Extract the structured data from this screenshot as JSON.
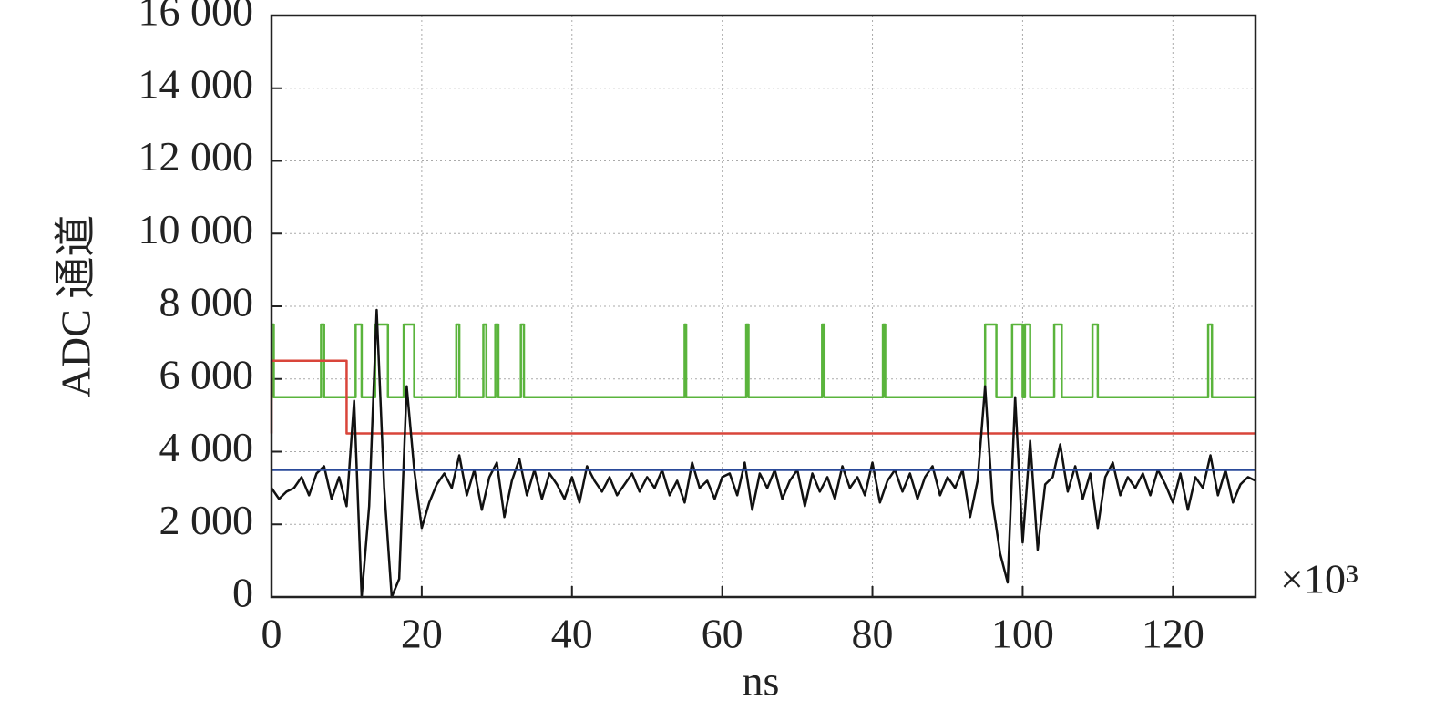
{
  "chart_data": {
    "type": "line",
    "x_label": "ns",
    "y_label": "ADC 通道",
    "x_multiplier": "×10³",
    "xlim": [
      0,
      131
    ],
    "ylim": [
      0,
      16000
    ],
    "xticks": [
      0,
      20,
      40,
      60,
      80,
      100,
      120
    ],
    "yticks": [
      0,
      {
        "value": 2000,
        "label": "2 000"
      },
      {
        "value": 4000,
        "label": "4 000"
      },
      {
        "value": 6000,
        "label": "6 000"
      },
      {
        "value": 8000,
        "label": "8 000"
      },
      {
        "value": 10000,
        "label": "10 000"
      },
      {
        "value": 12000,
        "label": "12 000"
      },
      {
        "value": 14000,
        "label": "14 000"
      },
      {
        "value": 16000,
        "label": "16 000"
      }
    ],
    "grid": true,
    "series": [
      {
        "color": "#5ab43c",
        "x": [
          0,
          0.3,
          0.3,
          6.6,
          6.6,
          7,
          7,
          11.2,
          11.2,
          12,
          12,
          13.8,
          13.8,
          15.5,
          15.5,
          17.6,
          17.6,
          19,
          19,
          24.6,
          24.6,
          25,
          25,
          28.2,
          28.2,
          28.6,
          28.6,
          29.8,
          29.8,
          30.2,
          30.2,
          33.2,
          33.2,
          33.6,
          33.6,
          55,
          55,
          55.2,
          55.2,
          63.2,
          63.2,
          63.5,
          63.5,
          73.3,
          73.3,
          73.6,
          73.6,
          81.4,
          81.4,
          81.7,
          81.7,
          95,
          95,
          96.5,
          96.5,
          98.6,
          98.6,
          100,
          100,
          100.3,
          100.3,
          101,
          101,
          104.2,
          104.2,
          105.2,
          105.2,
          109.3,
          109.3,
          110,
          110,
          124.7,
          124.7,
          125.2,
          125.2,
          131
        ],
        "values": [
          7500,
          7500,
          5500,
          5500,
          7500,
          7500,
          5500,
          5500,
          7500,
          7500,
          5500,
          5500,
          7500,
          7500,
          5500,
          5500,
          7500,
          7500,
          5500,
          5500,
          7500,
          7500,
          5500,
          5500,
          7500,
          7500,
          5500,
          5500,
          7500,
          7500,
          5500,
          5500,
          7500,
          7500,
          5500,
          5500,
          7500,
          7500,
          5500,
          5500,
          7500,
          7500,
          5500,
          5500,
          7500,
          7500,
          5500,
          5500,
          7500,
          7500,
          5500,
          5500,
          7500,
          7500,
          5500,
          5500,
          7500,
          7500,
          5500,
          5500,
          7500,
          7500,
          5500,
          5500,
          7500,
          7500,
          5500,
          5500,
          7500,
          7500,
          5500,
          5500,
          7500,
          7500,
          5500,
          5500
        ]
      },
      {
        "color": "#d9453a",
        "x": [
          0,
          0,
          10,
          10,
          131
        ],
        "values": [
          4500,
          6500,
          6500,
          4500,
          4500
        ]
      },
      {
        "color": "#111111",
        "x": [
          0,
          1,
          2,
          3,
          4,
          5,
          6,
          7,
          8,
          9,
          10,
          11,
          12,
          13,
          14,
          15,
          16,
          17,
          18,
          19,
          20,
          21,
          22,
          23,
          24,
          25,
          26,
          27,
          28,
          29,
          30,
          31,
          32,
          33,
          34,
          35,
          36,
          37,
          38,
          39,
          40,
          41,
          42,
          43,
          44,
          45,
          46,
          47,
          48,
          49,
          50,
          51,
          52,
          53,
          54,
          55,
          56,
          57,
          58,
          59,
          60,
          61,
          62,
          63,
          64,
          65,
          66,
          67,
          68,
          69,
          70,
          71,
          72,
          73,
          74,
          75,
          76,
          77,
          78,
          79,
          80,
          81,
          82,
          83,
          84,
          85,
          86,
          87,
          88,
          89,
          90,
          91,
          92,
          93,
          94,
          95,
          96,
          97,
          98,
          99,
          100,
          101,
          102,
          103,
          104,
          105,
          106,
          107,
          108,
          109,
          110,
          111,
          112,
          113,
          114,
          115,
          116,
          117,
          118,
          119,
          120,
          121,
          122,
          123,
          124,
          125,
          126,
          127,
          128,
          129,
          130,
          131
        ],
        "values": [
          3000,
          2700,
          2900,
          3000,
          3300,
          2800,
          3400,
          3600,
          2700,
          3300,
          2500,
          5400,
          0,
          2500,
          7900,
          3000,
          0,
          500,
          5800,
          3500,
          1900,
          2600,
          3100,
          3400,
          3000,
          3900,
          2800,
          3500,
          2400,
          3300,
          3700,
          2200,
          3200,
          3800,
          2800,
          3500,
          2700,
          3400,
          3100,
          2700,
          3300,
          2600,
          3600,
          3200,
          2900,
          3300,
          2800,
          3100,
          3400,
          2900,
          3300,
          3000,
          3500,
          2800,
          3200,
          2600,
          3700,
          3000,
          3200,
          2700,
          3300,
          3400,
          2800,
          3700,
          2400,
          3400,
          3000,
          3500,
          2700,
          3200,
          3500,
          2500,
          3400,
          2900,
          3300,
          2700,
          3600,
          3000,
          3300,
          2800,
          3700,
          2600,
          3200,
          3500,
          2900,
          3400,
          2700,
          3300,
          3600,
          2800,
          3300,
          3000,
          3500,
          2200,
          3200,
          5800,
          2600,
          1200,
          400,
          5500,
          1500,
          4300,
          1300,
          3100,
          3300,
          4200,
          2900,
          3600,
          2700,
          3400,
          1900,
          3300,
          3700,
          2800,
          3300,
          3000,
          3400,
          2800,
          3500,
          3100,
          2600,
          3400,
          2400,
          3300,
          3000,
          3900,
          2800,
          3500,
          2600,
          3100,
          3300,
          3200
        ]
      },
      {
        "color": "#2a4a9a",
        "x": [
          0,
          131
        ],
        "values": [
          3500,
          3500
        ]
      }
    ]
  }
}
